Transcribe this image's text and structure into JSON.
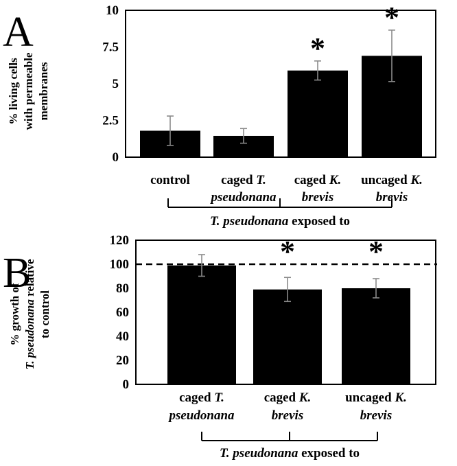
{
  "chart_data": [
    {
      "type": "bar",
      "panel": "A",
      "ylabel_lines": [
        "% living cells",
        "with permeable",
        "membranes"
      ],
      "ylim": [
        0,
        10
      ],
      "yticks": [
        "0",
        "2.5",
        "5",
        "7.5",
        "10"
      ],
      "grid": false,
      "categories": [
        {
          "lines": [
            [
              {
                "t": "control",
                "i": false
              }
            ]
          ]
        },
        {
          "lines": [
            [
              {
                "t": "caged ",
                "i": false
              },
              {
                "t": "T.",
                "i": true
              }
            ],
            [
              {
                "t": "pseudonana",
                "i": true
              }
            ]
          ]
        },
        {
          "lines": [
            [
              {
                "t": "caged ",
                "i": false
              },
              {
                "t": "K.",
                "i": true
              }
            ],
            [
              {
                "t": "brevis",
                "i": true
              }
            ]
          ]
        },
        {
          "lines": [
            [
              {
                "t": "uncaged ",
                "i": false
              },
              {
                "t": "K.",
                "i": true
              }
            ],
            [
              {
                "t": "brevis",
                "i": true
              }
            ]
          ]
        }
      ],
      "values": [
        1.8,
        1.45,
        5.9,
        6.9
      ],
      "errors": [
        1.0,
        0.5,
        0.65,
        1.75
      ],
      "significant": [
        "",
        "",
        "*",
        "*"
      ],
      "group_label": [
        {
          "t": "T. pseudonana",
          "i": true
        },
        {
          "t": "  exposed to",
          "i": false
        }
      ],
      "group_from": 1,
      "group_to": 3,
      "bar_color": "#000000"
    },
    {
      "type": "bar",
      "panel": "B",
      "ylabel_lines": [
        [
          {
            "t": "% growth of",
            "i": false
          }
        ],
        [
          {
            "t": "T. pseudonana",
            "i": true
          },
          {
            "t": "  relative",
            "i": false
          }
        ],
        [
          {
            "t": "to control",
            "i": false
          }
        ]
      ],
      "ylim": [
        0,
        120
      ],
      "yticks": [
        "0",
        "20",
        "40",
        "60",
        "80",
        "100",
        "120"
      ],
      "grid": false,
      "reference_line": 100,
      "categories": [
        {
          "lines": [
            [
              {
                "t": "caged  ",
                "i": false
              },
              {
                "t": "T.",
                "i": true
              }
            ],
            [
              {
                "t": "pseudonana",
                "i": true
              }
            ]
          ]
        },
        {
          "lines": [
            [
              {
                "t": "caged ",
                "i": false
              },
              {
                "t": "K.",
                "i": true
              }
            ],
            [
              {
                "t": "brevis",
                "i": true
              }
            ]
          ]
        },
        {
          "lines": [
            [
              {
                "t": "uncaged ",
                "i": false
              },
              {
                "t": "K.",
                "i": true
              }
            ],
            [
              {
                "t": "brevis",
                "i": true
              }
            ]
          ]
        }
      ],
      "values": [
        99,
        79,
        80
      ],
      "errors": [
        9,
        10,
        8
      ],
      "significant": [
        "",
        "*",
        "*"
      ],
      "group_label": [
        {
          "t": "T. pseudonana",
          "i": true
        },
        {
          "t": "  exposed to",
          "i": false
        }
      ],
      "group_from": 0,
      "group_to": 2,
      "bar_color": "#000000"
    }
  ]
}
